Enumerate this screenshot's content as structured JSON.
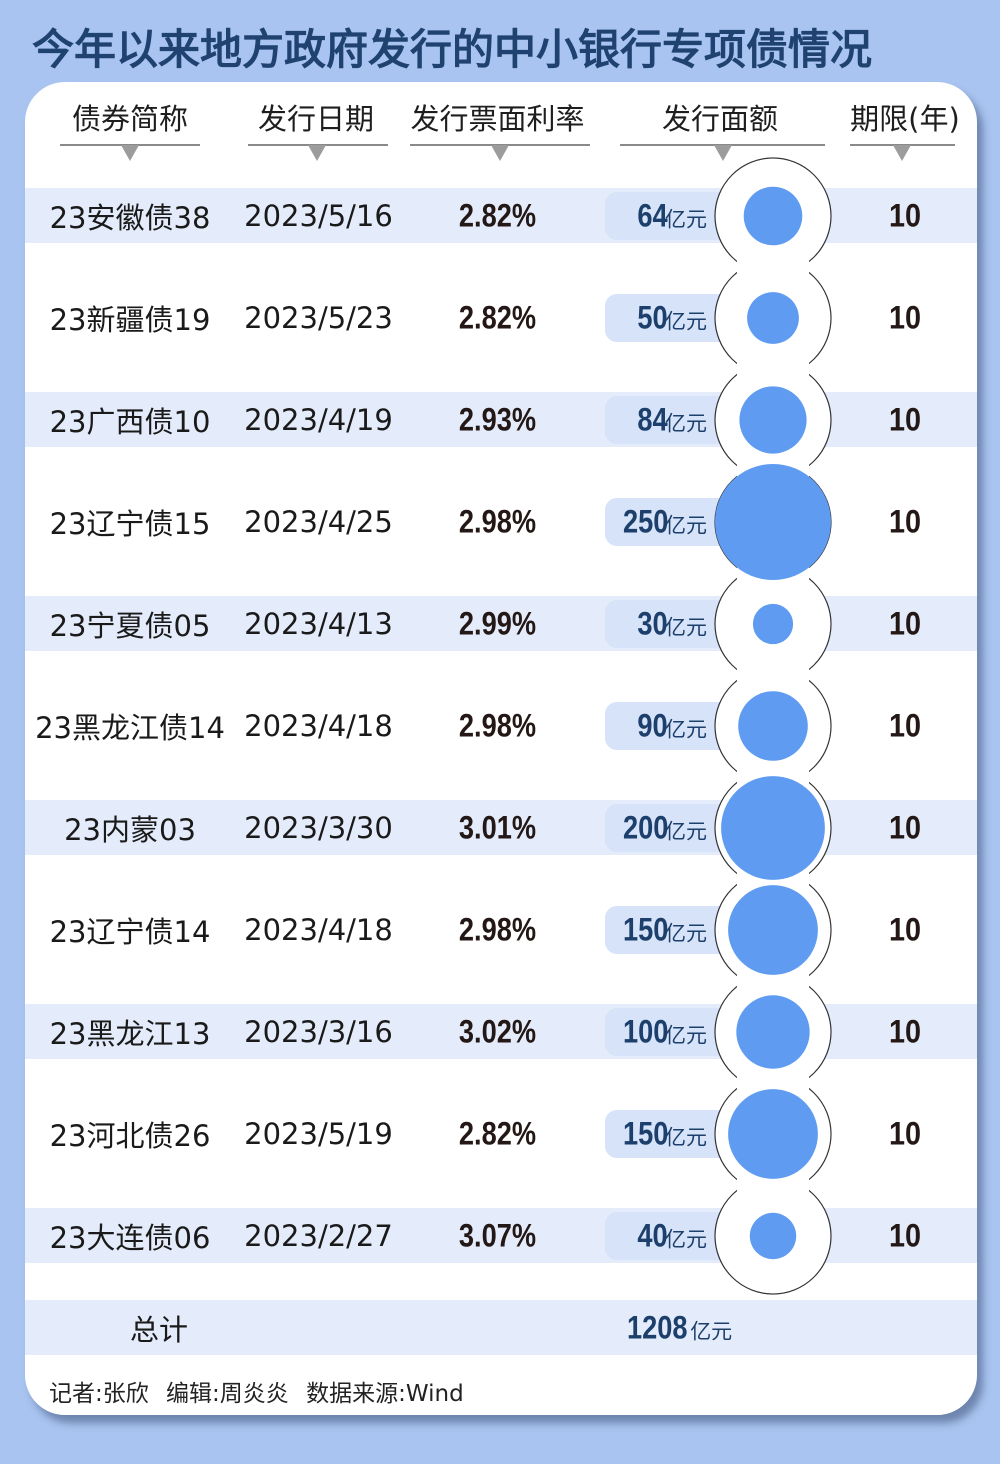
{
  "title": "今年以来地方政府发行的中小银行专项债情况",
  "headers": {
    "name": "债券简称",
    "date": "发行日期",
    "rate": "发行票面利率",
    "amount": "发行面额",
    "term": "期限(年)"
  },
  "unit": "亿元",
  "rows": [
    {
      "name": "23安徽债38",
      "date": "2023/5/16",
      "rate": "2.82%",
      "amount": "64",
      "term": "10"
    },
    {
      "name": "23新疆债19",
      "date": "2023/5/23",
      "rate": "2.82%",
      "amount": "50",
      "term": "10"
    },
    {
      "name": "23广西债10",
      "date": "2023/4/19",
      "rate": "2.93%",
      "amount": "84",
      "term": "10"
    },
    {
      "name": "23辽宁债15",
      "date": "2023/4/25",
      "rate": "2.98%",
      "amount": "250",
      "term": "10"
    },
    {
      "name": "23宁夏债05",
      "date": "2023/4/13",
      "rate": "2.99%",
      "amount": "30",
      "term": "10"
    },
    {
      "name": "23黑龙江债14",
      "date": "2023/4/18",
      "rate": "2.98%",
      "amount": "90",
      "term": "10"
    },
    {
      "name": "23内蒙03",
      "date": "2023/3/30",
      "rate": "3.01%",
      "amount": "200",
      "term": "10"
    },
    {
      "name": "23辽宁债14",
      "date": "2023/4/18",
      "rate": "2.98%",
      "amount": "150",
      "term": "10"
    },
    {
      "name": "23黑龙江13",
      "date": "2023/3/16",
      "rate": "3.02%",
      "amount": "100",
      "term": "10"
    },
    {
      "name": "23河北债26",
      "date": "2023/5/19",
      "rate": "2.82%",
      "amount": "150",
      "term": "10"
    },
    {
      "name": "23大连债06",
      "date": "2023/2/27",
      "rate": "3.07%",
      "amount": "40",
      "term": "10"
    }
  ],
  "total": {
    "label": "总计",
    "amount": "1208",
    "unit": "亿元"
  },
  "footer": "记者:张欣  编辑:周炎炎  数据来源:Wind",
  "colors": {
    "background": "#a9c4f0",
    "title": "#1f4270",
    "band": "#e4ecfb",
    "pill": "#d6e3f8",
    "bubble": "#5f9cf1",
    "amount_text": "#1c3f6b"
  },
  "chart_data": {
    "type": "table",
    "title": "今年以来地方政府发行的中小银行专项债情况",
    "columns": [
      "债券简称",
      "发行日期",
      "发行票面利率",
      "发行面额(亿元)",
      "期限(年)"
    ],
    "categories": [
      "23安徽债38",
      "23新疆债19",
      "23广西债10",
      "23辽宁债15",
      "23宁夏债05",
      "23黑龙江债14",
      "23内蒙03",
      "23辽宁债14",
      "23黑龙江13",
      "23河北债26",
      "23大连债06"
    ],
    "series": [
      {
        "name": "发行日期",
        "values": [
          "2023/5/16",
          "2023/5/23",
          "2023/4/19",
          "2023/4/25",
          "2023/4/13",
          "2023/4/18",
          "2023/3/30",
          "2023/4/18",
          "2023/3/16",
          "2023/5/19",
          "2023/2/27"
        ]
      },
      {
        "name": "发行票面利率(%)",
        "values": [
          2.82,
          2.82,
          2.93,
          2.98,
          2.99,
          2.98,
          3.01,
          2.98,
          3.02,
          2.82,
          3.07
        ]
      },
      {
        "name": "发行面额(亿元)",
        "values": [
          64,
          50,
          84,
          250,
          30,
          90,
          200,
          150,
          100,
          150,
          40
        ]
      },
      {
        "name": "期限(年)",
        "values": [
          10,
          10,
          10,
          10,
          10,
          10,
          10,
          10,
          10,
          10,
          10
        ]
      }
    ],
    "total": {
      "label": "总计",
      "value": 1208,
      "unit": "亿元"
    },
    "annotations": [
      "发行面额 visualized as proportional bubbles"
    ],
    "source": "数据来源:Wind"
  }
}
